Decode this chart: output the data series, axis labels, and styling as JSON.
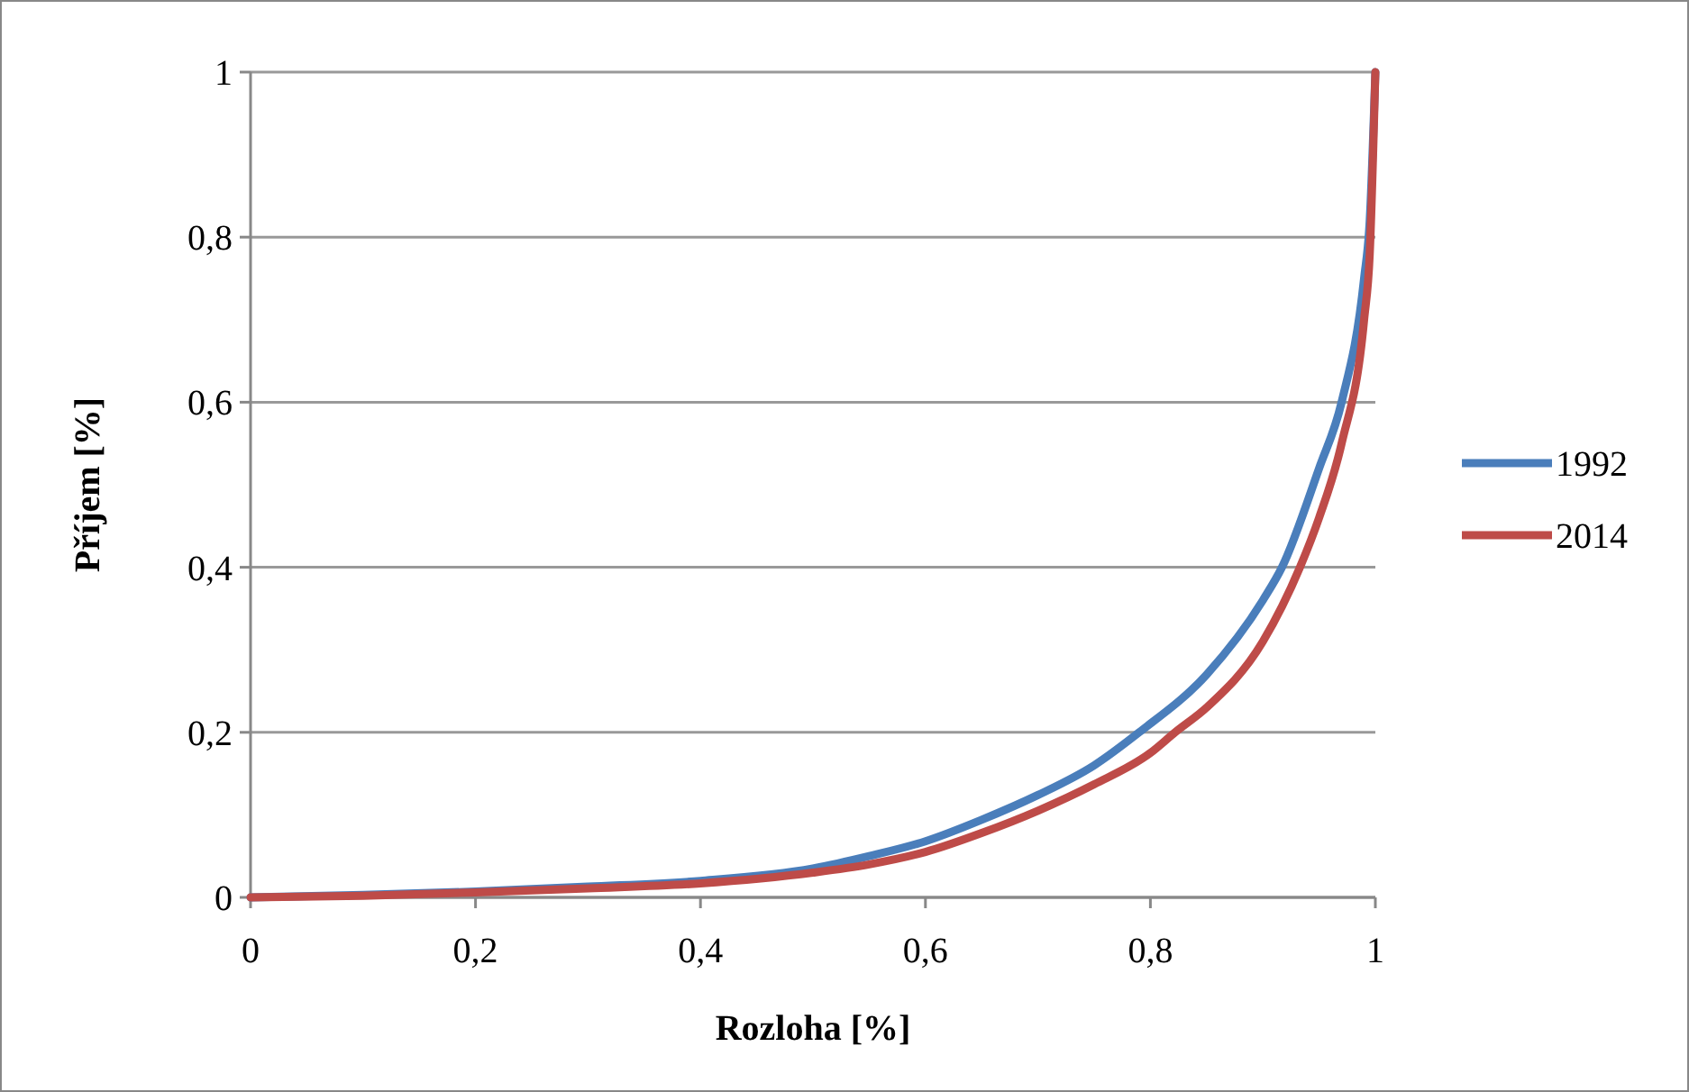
{
  "chart_data": {
    "type": "line",
    "xlabel": "Rozloha [%]",
    "ylabel": "Příjem [%]",
    "xlim": [
      0,
      1
    ],
    "xticks": [
      0,
      {
        "value": 0.2,
        "label": "0,2"
      },
      {
        "value": 0.4,
        "label": "0,4"
      },
      {
        "value": 0.6,
        "label": "0,6"
      },
      {
        "value": 0.8,
        "label": "0,8"
      },
      1
    ],
    "ylim": [
      0,
      1
    ],
    "yticks": [
      0,
      {
        "value": 0.2,
        "label": "0,2"
      },
      {
        "value": 0.4,
        "label": "0,4"
      },
      {
        "value": 0.6,
        "label": "0,6"
      },
      {
        "value": 0.8,
        "label": "0,8"
      },
      1
    ],
    "grid": "y",
    "legend": "right",
    "marker": "none",
    "series": [
      {
        "name": "1992",
        "color": "#4a7ebb",
        "x": [
          0,
          0.1,
          0.2,
          0.3,
          0.4,
          0.5,
          0.55,
          0.6,
          0.65,
          0.7,
          0.75,
          0.79,
          0.85,
          0.9,
          0.917,
          0.95,
          0.97,
          0.99,
          0.995,
          1
        ],
        "values": [
          0,
          0.003,
          0.007,
          0.013,
          0.02,
          0.035,
          0.05,
          0.068,
          0.094,
          0.124,
          0.16,
          0.2,
          0.27,
          0.36,
          0.4,
          0.52,
          0.6,
          0.75,
          0.82,
          1
        ]
      },
      {
        "name": "2014",
        "color": "#be4b48",
        "x": [
          0,
          0.1,
          0.2,
          0.3,
          0.4,
          0.5,
          0.55,
          0.6,
          0.65,
          0.7,
          0.75,
          0.8,
          0.822,
          0.85,
          0.9,
          0.933,
          0.95,
          0.97,
          0.99,
          0.995,
          1
        ],
        "values": [
          0,
          0.002,
          0.006,
          0.011,
          0.017,
          0.03,
          0.04,
          0.055,
          0.078,
          0.105,
          0.137,
          0.175,
          0.2,
          0.23,
          0.31,
          0.4,
          0.46,
          0.55,
          0.7,
          0.78,
          1
        ]
      }
    ]
  }
}
